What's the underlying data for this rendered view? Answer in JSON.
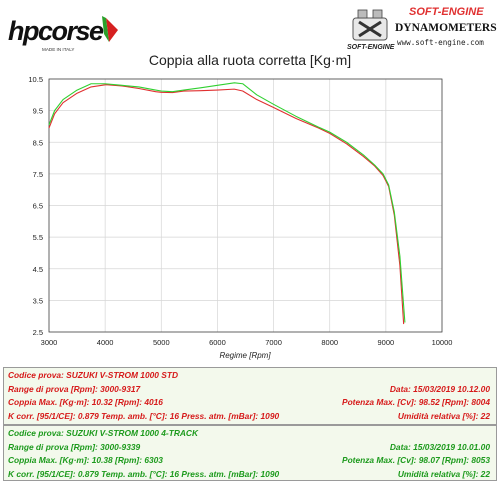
{
  "brand": {
    "logo_text": "hpcorse",
    "tagline": "MADE IN ITALY"
  },
  "dyno": {
    "logo_text": "SOFT-ENGINE",
    "subtitle": "DYNAMOMETERS",
    "url": "www.soft-engine.com",
    "emblem_text": "SOFT-ENGINE"
  },
  "chart_data": {
    "type": "line",
    "title": "Coppia alla ruota corretta [Kg·m]",
    "xlabel": "Regime [Rpm]",
    "ylabel": "",
    "xlim": [
      3000,
      10000
    ],
    "ylim": [
      2.5,
      10.5
    ],
    "xticks": [
      3000,
      4000,
      5000,
      6000,
      7000,
      8000,
      9000,
      10000
    ],
    "yticks": [
      10.5,
      9.5,
      8.5,
      7.5,
      6.5,
      5.5,
      4.5,
      3.5,
      2.5
    ],
    "grid": true,
    "series": [
      {
        "color": "#e03030",
        "points": [
          [
            3000,
            8.95
          ],
          [
            3100,
            9.4
          ],
          [
            3250,
            9.75
          ],
          [
            3500,
            10.05
          ],
          [
            3750,
            10.25
          ],
          [
            4016,
            10.32
          ],
          [
            4300,
            10.28
          ],
          [
            4600,
            10.2
          ],
          [
            4900,
            10.1
          ],
          [
            5000,
            10.08
          ],
          [
            5200,
            10.07
          ],
          [
            5400,
            10.12
          ],
          [
            5700,
            10.13
          ],
          [
            6000,
            10.15
          ],
          [
            6300,
            10.18
          ],
          [
            6450,
            10.12
          ],
          [
            6700,
            9.85
          ],
          [
            7000,
            9.6
          ],
          [
            7400,
            9.25
          ],
          [
            7800,
            8.95
          ],
          [
            8000,
            8.78
          ],
          [
            8300,
            8.45
          ],
          [
            8600,
            8.05
          ],
          [
            8800,
            7.75
          ],
          [
            8950,
            7.45
          ],
          [
            9050,
            7.1
          ],
          [
            9150,
            6.2
          ],
          [
            9250,
            4.6
          ],
          [
            9317,
            2.75
          ]
        ]
      },
      {
        "color": "#30d030",
        "points": [
          [
            3000,
            9.05
          ],
          [
            3100,
            9.5
          ],
          [
            3250,
            9.85
          ],
          [
            3500,
            10.15
          ],
          [
            3750,
            10.35
          ],
          [
            4000,
            10.35
          ],
          [
            4300,
            10.3
          ],
          [
            4600,
            10.25
          ],
          [
            4900,
            10.15
          ],
          [
            5000,
            10.12
          ],
          [
            5200,
            10.1
          ],
          [
            5400,
            10.15
          ],
          [
            5700,
            10.22
          ],
          [
            6000,
            10.3
          ],
          [
            6303,
            10.38
          ],
          [
            6450,
            10.35
          ],
          [
            6700,
            10.0
          ],
          [
            7000,
            9.7
          ],
          [
            7400,
            9.32
          ],
          [
            7800,
            8.98
          ],
          [
            8000,
            8.82
          ],
          [
            8300,
            8.5
          ],
          [
            8600,
            8.1
          ],
          [
            8800,
            7.78
          ],
          [
            8950,
            7.5
          ],
          [
            9050,
            7.15
          ],
          [
            9150,
            6.3
          ],
          [
            9250,
            4.9
          ],
          [
            9339,
            2.8
          ]
        ]
      }
    ]
  },
  "panels": [
    {
      "color": "#d61a1a",
      "lines": [
        {
          "left": "Codice prova: SUZUKI V-STROM 1000 STD",
          "right": ""
        },
        {
          "left": "Range di prova [Rpm]: 3000-9317",
          "right": "Data: 15/03/2019   10.12.00"
        },
        {
          "left": "Coppia Max. [Kg·m]: 10.32   [Rpm]: 4016",
          "right": "Potenza Max. [Cv]: 98.52   [Rpm]: 8004"
        },
        {
          "left": "K corr. [95/1/CE]: 0.879          Temp. amb. [°C]: 16               Press. atm. [mBar]: 1090",
          "right": "Umidità relativa [%]: 22"
        }
      ]
    },
    {
      "color": "#1c9a1c",
      "lines": [
        {
          "left": "Codice prova: SUZUKI V-STROM 1000  4-TRACK",
          "right": ""
        },
        {
          "left": "Range di prova [Rpm]: 3000-9339",
          "right": "Data: 15/03/2019   10.01.00"
        },
        {
          "left": "Coppia Max. [Kg·m]: 10.38   [Rpm]: 6303",
          "right": "Potenza Max. [Cv]: 98.07   [Rpm]: 8053"
        },
        {
          "left": "K corr. [95/1/CE]: 0.879          Temp. amb. [°C]: 16               Press. atm. [mBar]: 1090",
          "right": "Umidità relativa [%]: 22"
        }
      ]
    }
  ]
}
